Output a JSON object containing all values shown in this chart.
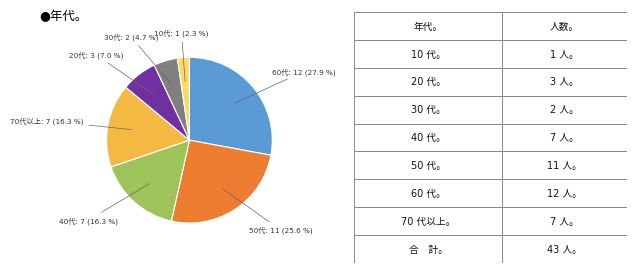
{
  "title": "●年代。",
  "labels": [
    "60代",
    "50代",
    "40代",
    "70代以上",
    "20代",
    "30代",
    "10代"
  ],
  "values": [
    12,
    11,
    7,
    7,
    3,
    2,
    1
  ],
  "colors": [
    "#5B9BD5",
    "#ED7D31",
    "#9DC35A",
    "#F4B942",
    "#7030A0",
    "#808080",
    "#FFD966"
  ],
  "label_data": [
    {
      "label": "60代",
      "val": 12,
      "pct": 27.9
    },
    {
      "label": "50代",
      "val": 11,
      "pct": 25.6
    },
    {
      "label": "40代",
      "val": 7,
      "pct": 16.3
    },
    {
      "label": "70代以上",
      "val": 7,
      "pct": 16.3
    },
    {
      "label": "20代",
      "val": 3,
      "pct": 7.0
    },
    {
      "label": "30代",
      "val": 2,
      "pct": 4.7
    },
    {
      "label": "10代",
      "val": 1,
      "pct": 2.3
    }
  ],
  "table_headers": [
    "年代。",
    "人数。"
  ],
  "table_rows": [
    [
      "10 代。",
      "1 人。"
    ],
    [
      "20 代。",
      "3 人。"
    ],
    [
      "30 代。",
      "2 人。"
    ],
    [
      "40 代。",
      "7 人。"
    ],
    [
      "50 代。",
      "11 人。"
    ],
    [
      "60 代。",
      "12 人。"
    ],
    [
      "70 代以上。",
      "7 人。"
    ],
    [
      "合　計。",
      "43 人。"
    ]
  ],
  "chart_bg": "#EEF3F8",
  "startangle": 90
}
